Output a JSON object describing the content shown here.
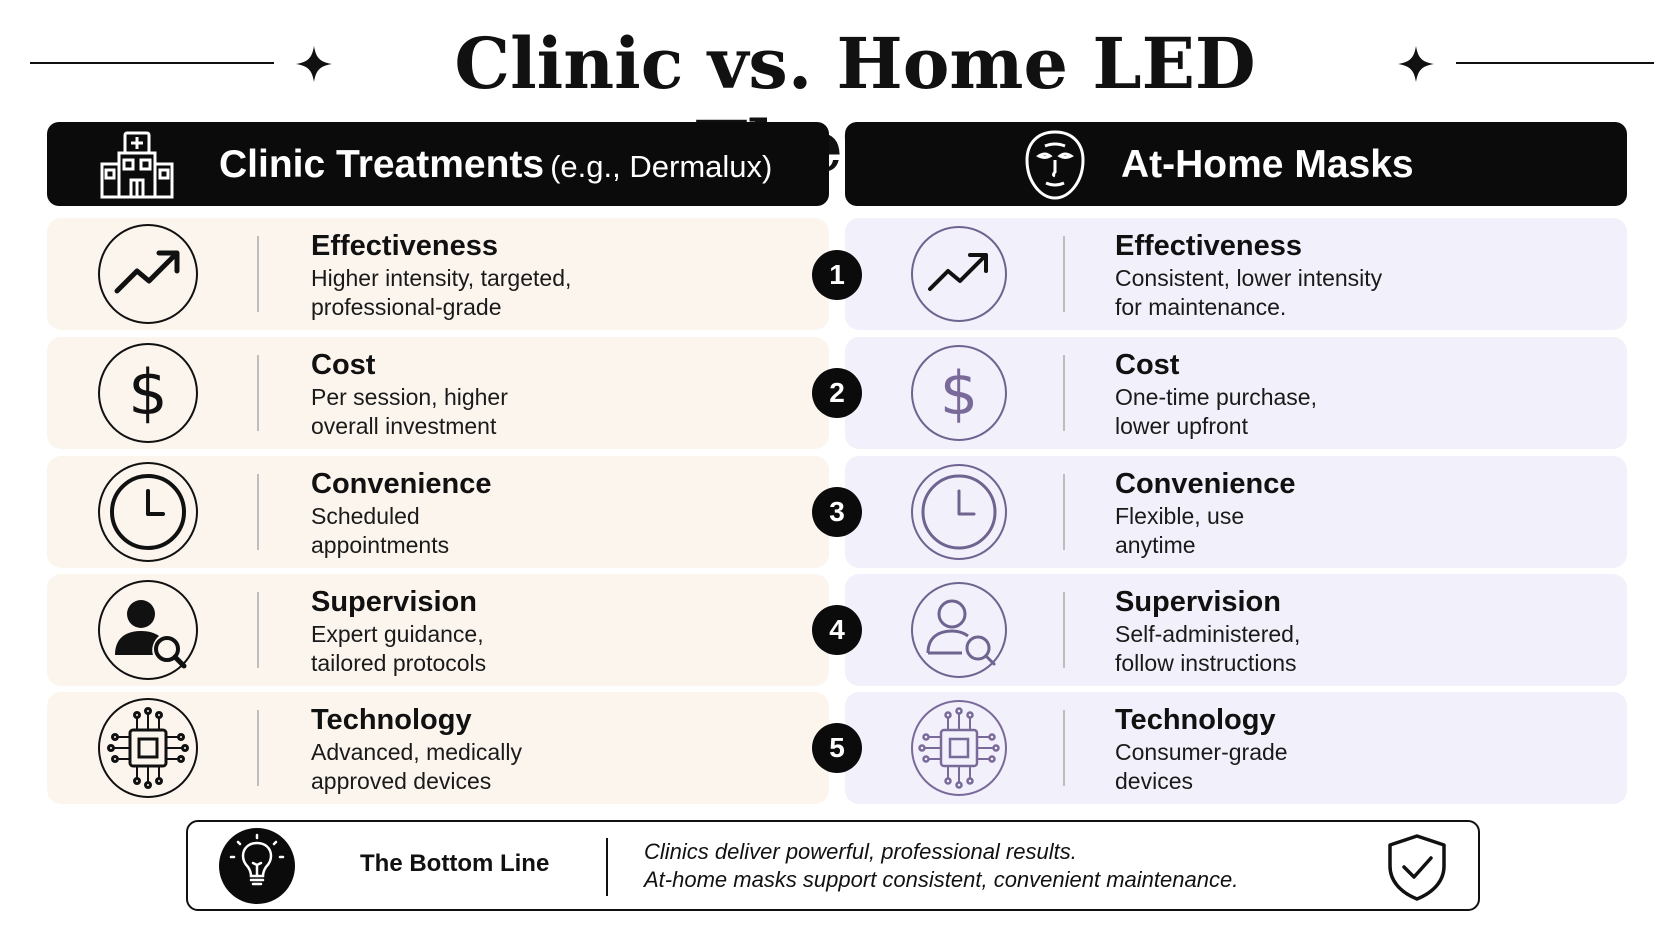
{
  "title": "Clinic vs. Home LED Therapy",
  "columns": {
    "clinic": {
      "title": "Clinic Treatments",
      "subtitle": "(e.g., Dermalux)",
      "icon": "hospital-icon"
    },
    "home": {
      "title": "At-Home Masks",
      "icon": "face-mask-icon"
    }
  },
  "rows": [
    {
      "number": "1",
      "icon": "trending-up-icon",
      "clinic": {
        "label": "Effectiveness",
        "line1": "Higher intensity, targeted,",
        "line2": "professional-grade"
      },
      "home": {
        "label": "Effectiveness",
        "line1": "Consistent, lower intensity",
        "line2": "for maintenance."
      }
    },
    {
      "number": "2",
      "icon": "dollar-icon",
      "clinic": {
        "label": "Cost",
        "line1": "Per session, higher",
        "line2": "overall investment"
      },
      "home": {
        "label": "Cost",
        "line1": "One-time purchase,",
        "line2": "lower upfront"
      }
    },
    {
      "number": "3",
      "icon": "clock-icon",
      "clinic": {
        "label": "Convenience",
        "line1": "Scheduled",
        "line2": "appointments"
      },
      "home": {
        "label": "Convenience",
        "line1": "Flexible, use",
        "line2": "anytime"
      }
    },
    {
      "number": "4",
      "icon": "user-search-icon",
      "clinic": {
        "label": "Supervision",
        "line1": "Expert guidance,",
        "line2": "tailored protocols"
      },
      "home": {
        "label": "Supervision",
        "line1": "Self-administered,",
        "line2": "follow instructions"
      }
    },
    {
      "number": "5",
      "icon": "chip-icon",
      "clinic": {
        "label": "Technology",
        "line1": "Advanced, medically",
        "line2": "approved devices"
      },
      "home": {
        "label": "Technology",
        "line1": "Consumer-grade",
        "line2": "devices"
      }
    }
  ],
  "bottom": {
    "title": "The Bottom Line",
    "line1": "Clinics deliver powerful, professional results.",
    "line2": "At-home masks support consistent, convenient maintenance.",
    "icons": [
      "lightbulb-icon",
      "shield-check-icon"
    ]
  },
  "colors": {
    "header_bg": "#0b0b0b",
    "clinic_row_bg": "#fcf5ee",
    "home_row_bg": "#f2f0fa",
    "clinic_icon": "#111111",
    "home_icon": "#7a6a9a"
  }
}
